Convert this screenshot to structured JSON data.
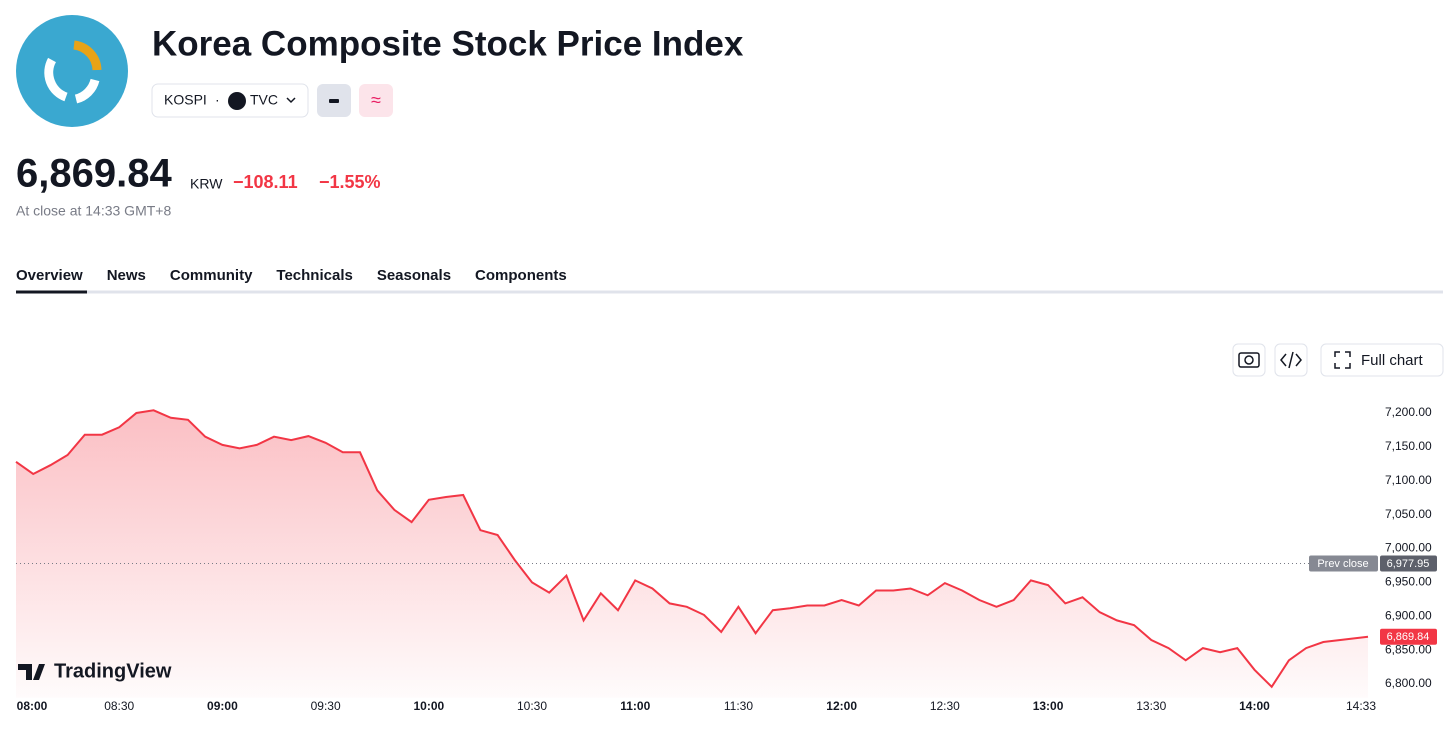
{
  "header": {
    "title": "Korea Composite Stock Price Index",
    "symbol": "KOSPI",
    "exchange": "TVC",
    "price": "6,869.84",
    "currency": "KRW",
    "change": "−108.11",
    "change_percent": "−1.55%",
    "status": "At close at 14:33 GMT+8"
  },
  "tabs": [
    "Overview",
    "News",
    "Community",
    "Technicals",
    "Seasonals",
    "Components"
  ],
  "toolbar": {
    "full_chart": "Full chart"
  },
  "watermark": "TradingView",
  "chart_data": {
    "type": "line",
    "x": [
      "08:00",
      "08:05",
      "08:10",
      "08:15",
      "08:20",
      "08:25",
      "08:30",
      "08:35",
      "08:40",
      "08:45",
      "08:50",
      "08:55",
      "09:00",
      "09:05",
      "09:10",
      "09:15",
      "09:20",
      "09:25",
      "09:30",
      "09:35",
      "09:40",
      "09:45",
      "09:50",
      "09:55",
      "10:00",
      "10:05",
      "10:10",
      "10:15",
      "10:20",
      "10:25",
      "10:30",
      "10:35",
      "10:40",
      "10:45",
      "10:50",
      "10:55",
      "11:00",
      "11:05",
      "11:10",
      "11:15",
      "11:20",
      "11:25",
      "11:30",
      "11:35",
      "11:40",
      "11:45",
      "11:50",
      "11:55",
      "12:00",
      "12:05",
      "12:10",
      "12:15",
      "12:20",
      "12:25",
      "12:30",
      "12:35",
      "12:40",
      "12:45",
      "12:50",
      "12:55",
      "13:00",
      "13:05",
      "13:10",
      "13:15",
      "13:20",
      "13:25",
      "13:30",
      "13:35",
      "13:40",
      "13:45",
      "13:50",
      "13:55",
      "14:00",
      "14:05",
      "14:10",
      "14:15",
      "14:20",
      "14:33"
    ],
    "series": [
      {
        "name": "KOSPI",
        "color": "#f23645",
        "values": [
          7128,
          7110,
          7123,
          7138,
          7168,
          7168,
          7179,
          7200,
          7204,
          7193,
          7190,
          7165,
          7153,
          7148,
          7153,
          7165,
          7160,
          7166,
          7156,
          7142,
          7142,
          7086,
          7057,
          7039,
          7072,
          7076,
          7079,
          7027,
          7020,
          6983,
          6950,
          6935,
          6960,
          6894,
          6934,
          6909,
          6953,
          6941,
          6919,
          6914,
          6902,
          6877,
          6914,
          6875,
          6909,
          6912,
          6916,
          6916,
          6924,
          6916,
          6938,
          6938,
          6941,
          6931,
          6949,
          6938,
          6924,
          6914,
          6924,
          6953,
          6946,
          6919,
          6928,
          6906,
          6894,
          6887,
          6865,
          6853,
          6835,
          6853,
          6847,
          6853,
          6821,
          6796,
          6835,
          6853,
          6862,
          6869.84
        ]
      }
    ],
    "xticks": [
      "08:00",
      "08:30",
      "09:00",
      "09:30",
      "10:00",
      "10:30",
      "11:00",
      "11:30",
      "12:00",
      "12:30",
      "13:00",
      "13:30",
      "14:00",
      "14:33"
    ],
    "ylim": [
      6780,
      7230
    ],
    "yticks": [
      {
        "value": 6800,
        "label": "6,800.00"
      },
      {
        "value": 6850,
        "label": "6,850.00"
      },
      {
        "value": 6900,
        "label": "6,900.00"
      },
      {
        "value": 6950,
        "label": "6,950.00"
      },
      {
        "value": 7000,
        "label": "7,000.00"
      },
      {
        "value": 7050,
        "label": "7,050.00"
      },
      {
        "value": 7100,
        "label": "7,100.00"
      },
      {
        "value": 7150,
        "label": "7,150.00"
      },
      {
        "value": 7200,
        "label": "7,200.00"
      }
    ],
    "prev_close": {
      "name": "Prev close",
      "value": 6977.95,
      "label": "6,977.95"
    },
    "last": {
      "value": 6869.84,
      "label": "6,869.84"
    }
  }
}
